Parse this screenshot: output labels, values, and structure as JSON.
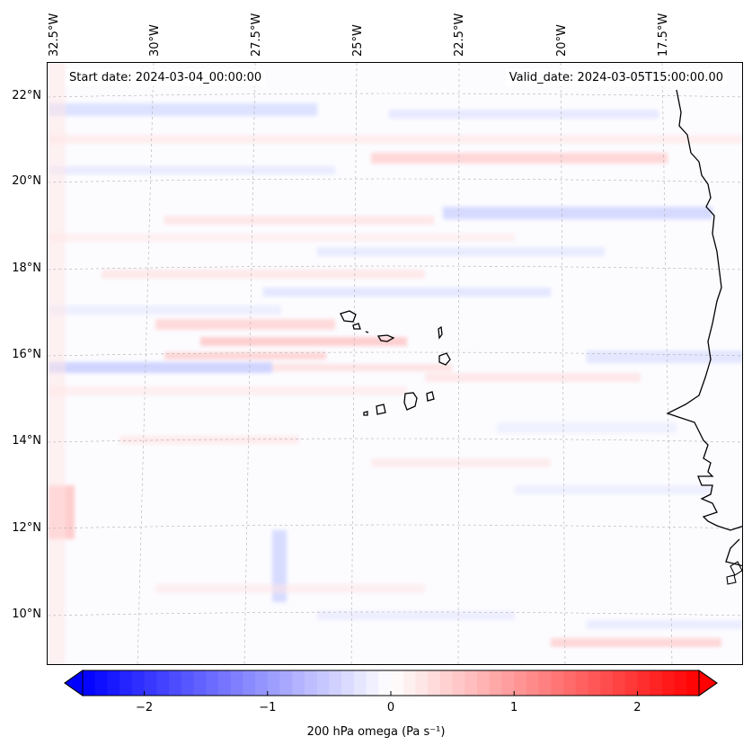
{
  "map": {
    "start_date": "Start date: 2024-03-04_00:00:00",
    "valid_date": "Valid_date: 2024-03-05T15:00:00.00",
    "lon_labels": [
      "32.5°W",
      "30°W",
      "27.5°W",
      "25°W",
      "22.5°W",
      "20°W",
      "17.5°W"
    ],
    "lat_labels": [
      "22°N",
      "20°N",
      "18°N",
      "16°N",
      "14°N",
      "12°N",
      "10°N"
    ],
    "field": "200 hPa omega",
    "islands": [
      "Santo Antão",
      "São Vicente",
      "Santa Luzia",
      "São Nicolau",
      "Sal",
      "Boa Vista",
      "Maio",
      "Santiago",
      "Fogo",
      "Brava"
    ],
    "coastline": "West Africa (Mauritania, Senegal, Gambia, Guinea-Bissau)"
  },
  "colorbar": {
    "label": "200 hPa omega (Pa s⁻¹)",
    "ticks": [
      "−2",
      "−1",
      "0",
      "1",
      "2"
    ],
    "tick_values": [
      -2,
      -1,
      0,
      1,
      2
    ],
    "range": [
      -2.5,
      2.5
    ],
    "extend": "both",
    "colors": {
      "negative": "#0000ff",
      "zero": "#ffffff",
      "positive": "#ff0000"
    }
  }
}
